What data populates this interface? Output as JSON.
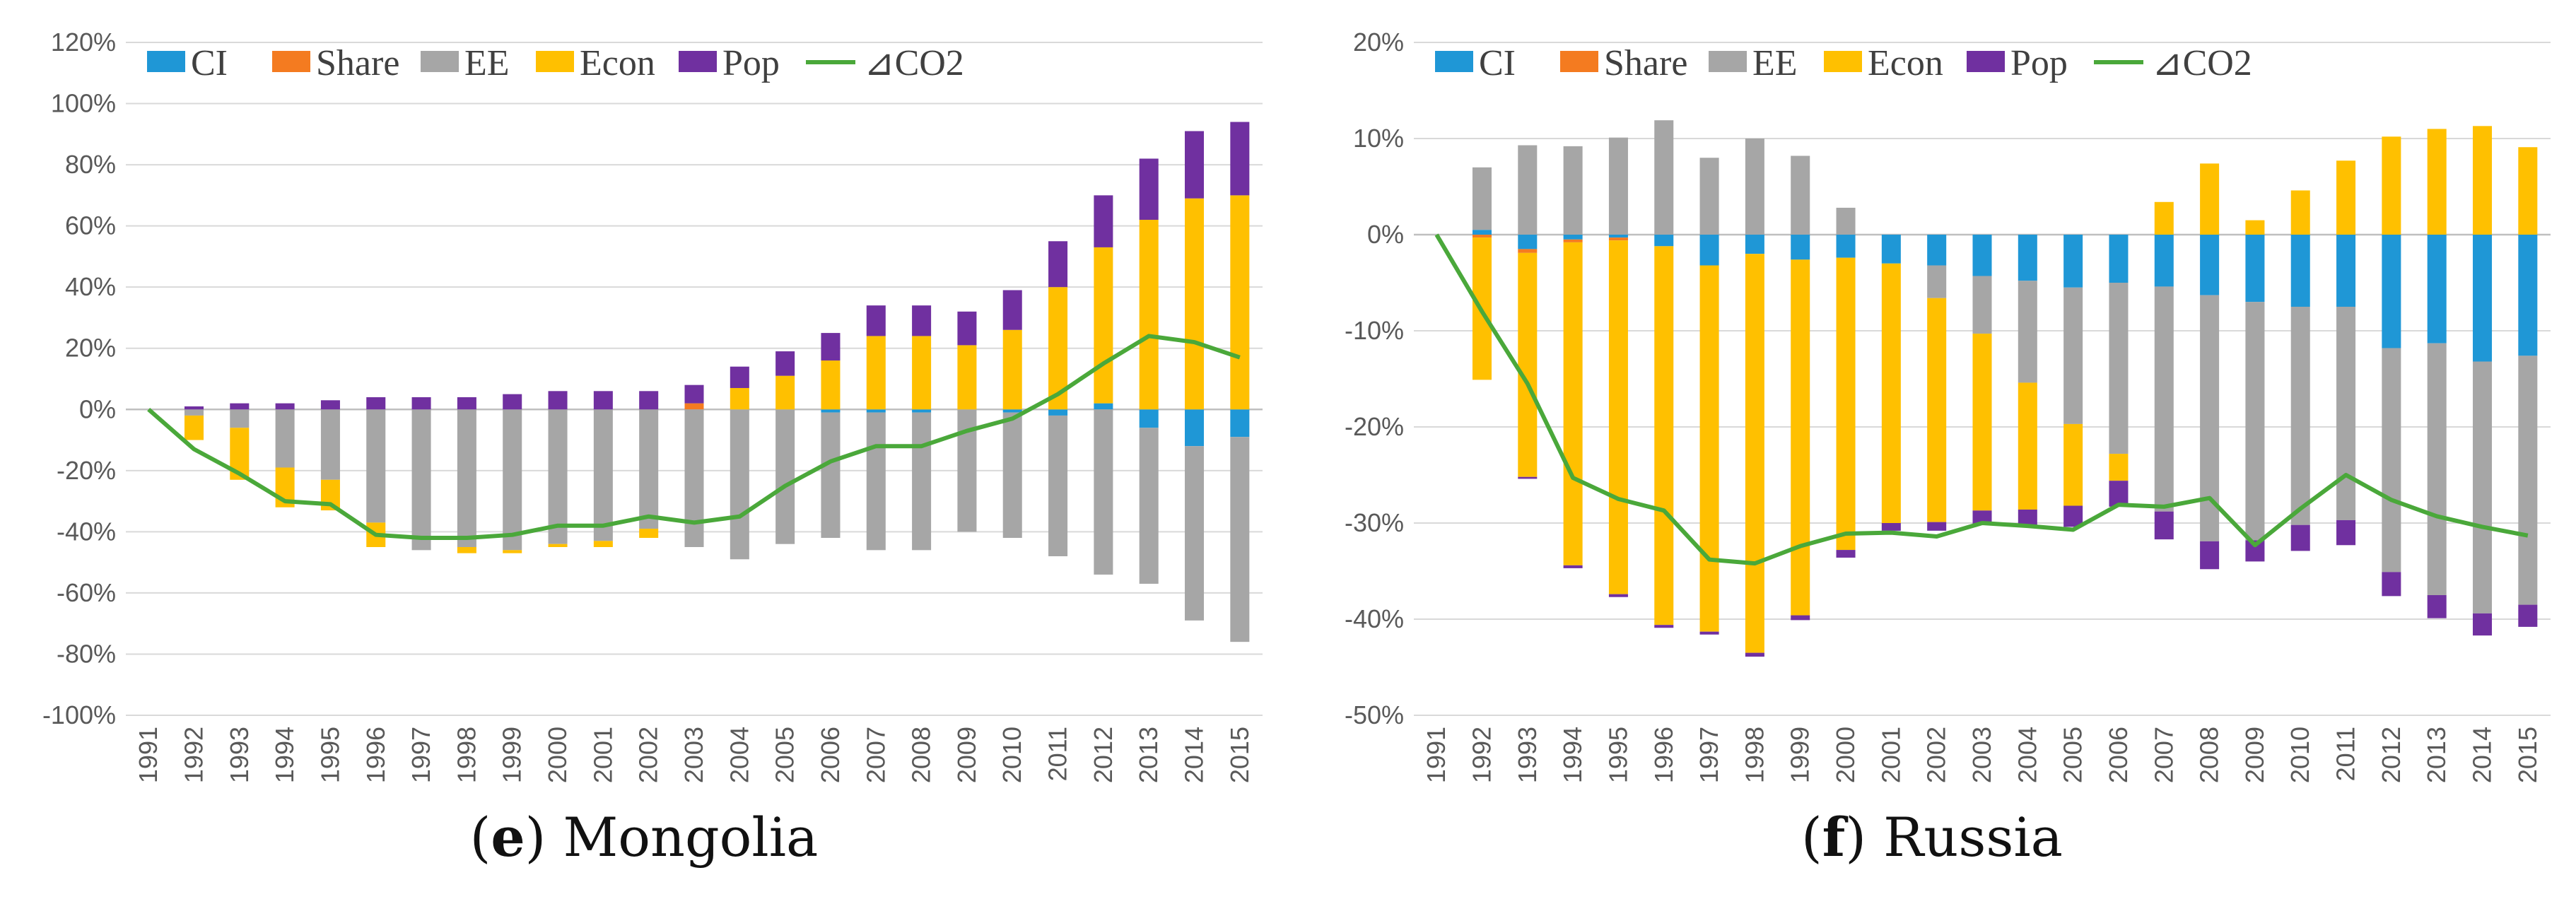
{
  "colors": {
    "CI": "#1f97d6",
    "Share": "#f47b20",
    "EE": "#a6a6a6",
    "Econ": "#ffc000",
    "Pop": "#7030a0",
    "CO2": "#4aa83a",
    "grid": "#d9d9d9",
    "axis": "#bfbfbf"
  },
  "chart_data": [
    {
      "type": "bar",
      "panel": "e",
      "caption_letter": "e",
      "caption_rest": ") Mongolia",
      "caption_open": "(",
      "stacked": true,
      "y_unit": "%",
      "ylim": [
        -100,
        120
      ],
      "y_ticks": [
        -100,
        -80,
        -60,
        -40,
        -20,
        0,
        20,
        40,
        60,
        80,
        100,
        120
      ],
      "y_tick_labels": [
        "-100%",
        "-80%",
        "-60%",
        "-40%",
        "-20%",
        "0%",
        "20%",
        "40%",
        "60%",
        "80%",
        "100%",
        "120%"
      ],
      "legend": [
        "CI",
        "Share",
        "EE",
        "Econ",
        "Pop",
        "⊿CO2"
      ],
      "legend_position": "top-left",
      "categories": [
        "1991",
        "1992",
        "1993",
        "1994",
        "1995",
        "1996",
        "1997",
        "1998",
        "1999",
        "2000",
        "2001",
        "2002",
        "2003",
        "2004",
        "2005",
        "2006",
        "2007",
        "2008",
        "2009",
        "2010",
        "2011",
        "2012",
        "2013",
        "2014",
        "2015"
      ],
      "series": [
        {
          "name": "CI",
          "values": [
            0,
            0,
            0,
            0,
            0,
            0,
            0,
            0,
            0,
            0,
            0,
            0,
            0,
            0,
            0,
            -1,
            -1,
            -1,
            0,
            -1,
            -2,
            2,
            -6,
            -12,
            -9
          ]
        },
        {
          "name": "Share",
          "values": [
            0,
            0,
            0,
            0,
            0,
            0,
            0,
            0,
            0,
            0,
            0,
            0,
            2,
            0,
            0,
            0,
            0,
            0,
            0,
            0,
            0,
            0,
            0,
            0,
            0
          ]
        },
        {
          "name": "EE",
          "values": [
            0,
            -2,
            -6,
            -19,
            -23,
            -37,
            -46,
            -45,
            -46,
            -44,
            -43,
            -39,
            -45,
            -49,
            -44,
            -41,
            -45,
            -45,
            -40,
            -41,
            -46,
            -54,
            -51,
            -57,
            -67
          ]
        },
        {
          "name": "Econ",
          "values": [
            0,
            -8,
            -17,
            -13,
            -10,
            -8,
            0,
            -2,
            -1,
            -1,
            -2,
            -3,
            0,
            7,
            11,
            16,
            24,
            24,
            21,
            26,
            40,
            51,
            62,
            69,
            70
          ]
        },
        {
          "name": "Pop",
          "values": [
            0,
            1,
            2,
            2,
            3,
            4,
            4,
            4,
            5,
            6,
            6,
            6,
            6,
            7,
            8,
            9,
            10,
            10,
            11,
            13,
            15,
            17,
            20,
            22,
            24
          ]
        }
      ],
      "line": {
        "name": "⊿CO2",
        "values": [
          0,
          -13,
          -21,
          -30,
          -31,
          -41,
          -42,
          -42,
          -41,
          -38,
          -38,
          -35,
          -37,
          -35,
          -25,
          -17,
          -12,
          -12,
          -7,
          -3,
          5,
          15,
          24,
          22,
          17
        ]
      }
    },
    {
      "type": "bar",
      "panel": "f",
      "caption_letter": "f",
      "caption_rest": ") Russia",
      "caption_open": "(",
      "stacked": true,
      "y_unit": "%",
      "ylim": [
        -50,
        20
      ],
      "y_ticks": [
        -50,
        -40,
        -30,
        -20,
        -10,
        0,
        10,
        20
      ],
      "y_tick_labels": [
        "-50%",
        "-40%",
        "-30%",
        "-20%",
        "-10%",
        "0%",
        "10%",
        "20%"
      ],
      "legend": [
        "CI",
        "Share",
        "EE",
        "Econ",
        "Pop",
        "⊿CO2"
      ],
      "legend_position": "top-left",
      "categories": [
        "1991",
        "1992",
        "1993",
        "1994",
        "1995",
        "1996",
        "1997",
        "1998",
        "1999",
        "2000",
        "2001",
        "2002",
        "2003",
        "2004",
        "2005",
        "2006",
        "2007",
        "2008",
        "2009",
        "2010",
        "2011",
        "2012",
        "2013",
        "2014",
        "2015"
      ],
      "series": [
        {
          "name": "CI",
          "values": [
            0,
            0.5,
            -1.5,
            -0.5,
            -0.3,
            -1.2,
            -3.2,
            -2,
            -2.6,
            -2.4,
            -3,
            -3.2,
            -4.3,
            -4.8,
            -5.5,
            -5,
            -5.4,
            -6.3,
            -7,
            -7.5,
            -7.5,
            -11.8,
            -11.3,
            -13.2,
            -12.6
          ]
        },
        {
          "name": "Share",
          "values": [
            0,
            -0.3,
            -0.4,
            -0.3,
            -0.3,
            0,
            0,
            0,
            0,
            0,
            0,
            0,
            0,
            0,
            0,
            0,
            0,
            0,
            0,
            0,
            0,
            0,
            0,
            0,
            0
          ]
        },
        {
          "name": "EE",
          "values": [
            0,
            6.5,
            9.3,
            9.2,
            10.1,
            11.9,
            8.0,
            10.0,
            8.2,
            2.8,
            0,
            -3.4,
            -6,
            -10.6,
            -14.2,
            -17.8,
            -23.4,
            -25.6,
            -24.8,
            -22.7,
            -22.2,
            -23.3,
            -26.2,
            -26.2,
            -25.9
          ]
        },
        {
          "name": "Econ",
          "values": [
            0,
            -14.8,
            -23.3,
            -33.6,
            -36.8,
            -39.4,
            -38.1,
            -41.5,
            -37,
            -30.4,
            -27,
            -23.3,
            -18.4,
            -13.2,
            -8.5,
            -2.8,
            3.4,
            7.4,
            1.5,
            4.6,
            7.7,
            10.2,
            11,
            11.3,
            9.1
          ]
        },
        {
          "name": "Pop",
          "values": [
            0,
            0,
            -0.2,
            -0.3,
            -0.3,
            -0.3,
            -0.3,
            -0.4,
            -0.5,
            -0.8,
            -0.8,
            -0.9,
            -1.5,
            -1.7,
            -2.2,
            -2.7,
            -2.9,
            -2.9,
            -2.2,
            -2.7,
            -2.6,
            -2.5,
            -2.4,
            -2.3,
            -2.3
          ]
        }
      ],
      "line": {
        "name": "⊿CO2",
        "values": [
          0,
          -8,
          -15.5,
          -25.3,
          -27.5,
          -28.7,
          -33.8,
          -34.2,
          -32.4,
          -31.1,
          -31.0,
          -31.4,
          -30.0,
          -30.3,
          -30.7,
          -28.1,
          -28.3,
          -27.4,
          -32.3,
          -28.5,
          -25.0,
          -27.6,
          -29.3,
          -30.4,
          -31.3
        ]
      }
    }
  ]
}
